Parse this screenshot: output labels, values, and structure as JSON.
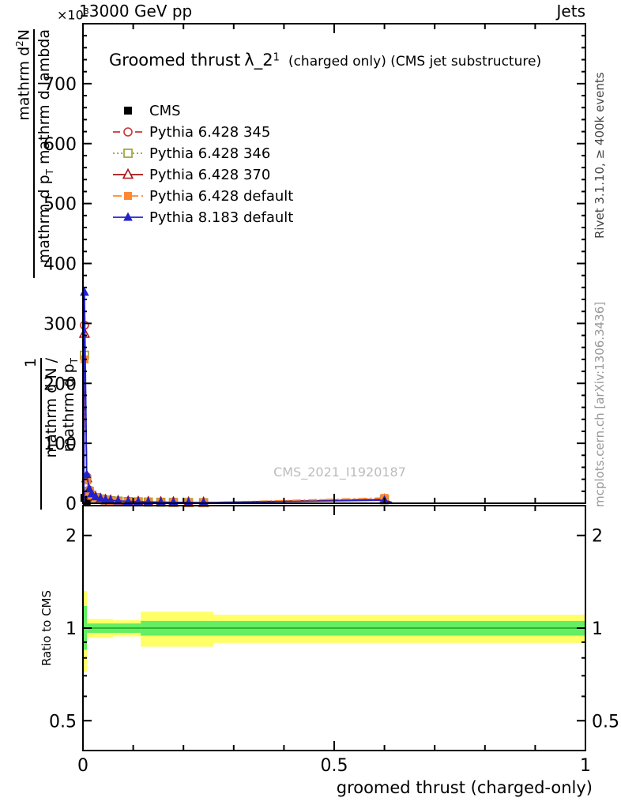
{
  "header": {
    "exponent_base": "×10",
    "exponent_sup": "3",
    "left_title": "13000 GeV pp",
    "right_title": "Jets"
  },
  "panel_title": {
    "main": "Groomed thrust",
    "lambda": "λ_2",
    "sup": "1",
    "paren": "(charged only) (CMS jet substructure)"
  },
  "watermark": "CMS_2021_I1920187",
  "y_axis_label": {
    "num_a": "mathrm d",
    "num_sup": "2",
    "num_b": "N",
    "den_a": "mathrm d p",
    "den_sub": "T",
    "den_b": " mathrm d lambda",
    "pre_num": "1",
    "pre_den_a": "mathrm d N / mathrm d p",
    "pre_den_sub": "T"
  },
  "right_margin": {
    "top_label": "Rivet 3.1.10, ≥ 400k events",
    "bottom_label": "mcplots.cern.ch [arXiv:1306.3436]"
  },
  "ratio_axis_label": "Ratio to CMS",
  "x_axis_label": "groomed thrust (charged-only)",
  "chart_data": {
    "type": "line",
    "title": "Groomed thrust λ_2^1 (charged only) (CMS jet substructure)",
    "xlabel": "groomed thrust (charged-only)",
    "ylabel": "1/mathrm dN/mathrm dp_T mathrm d^2N/(mathrm dp_T mathrm dlambda)",
    "y_exponent": "×10^3",
    "xlim": [
      0,
      1
    ],
    "main_panel": {
      "ylim": [
        0,
        800
      ],
      "yticks": [
        0,
        100,
        200,
        300,
        400,
        500,
        600,
        700
      ],
      "y_minor_step": 20,
      "x_major_ticks": [
        0,
        0.5,
        1
      ]
    },
    "series": [
      {
        "name": "CMS",
        "color": "#000000",
        "marker": "filled-square",
        "linestyle": "none",
        "points": [
          [
            0.003,
            9
          ],
          [
            0.0075,
            4
          ],
          [
            0.6,
            5
          ]
        ]
      },
      {
        "name": "Pythia 6.428 345",
        "color": "#cc3333",
        "marker": "open-circle",
        "linestyle": "dashed",
        "points": [
          [
            0.0015,
            2
          ],
          [
            0.003,
            297
          ],
          [
            0.0075,
            44
          ],
          [
            0.0125,
            22
          ],
          [
            0.0175,
            15
          ],
          [
            0.025,
            10
          ],
          [
            0.035,
            7.5
          ],
          [
            0.045,
            5.6
          ],
          [
            0.055,
            4.7
          ],
          [
            0.07,
            3.8
          ],
          [
            0.09,
            3.0
          ],
          [
            0.11,
            2.5
          ],
          [
            0.13,
            2.1
          ],
          [
            0.155,
            1.8
          ],
          [
            0.18,
            1.5
          ],
          [
            0.21,
            1.25
          ],
          [
            0.24,
            1.0
          ],
          [
            0.6,
            7
          ],
          [
            0.615,
            1
          ]
        ]
      },
      {
        "name": "Pythia 6.428 346",
        "color": "#999933",
        "marker": "open-square",
        "linestyle": "dotted",
        "points": [
          [
            0.0015,
            2
          ],
          [
            0.003,
            247
          ],
          [
            0.0075,
            40
          ],
          [
            0.0125,
            20
          ],
          [
            0.0175,
            13.5
          ],
          [
            0.025,
            9.4
          ],
          [
            0.035,
            7.0
          ],
          [
            0.045,
            5.2
          ],
          [
            0.055,
            4.3
          ],
          [
            0.07,
            3.5
          ],
          [
            0.09,
            2.8
          ],
          [
            0.11,
            2.3
          ],
          [
            0.13,
            1.95
          ],
          [
            0.155,
            1.65
          ],
          [
            0.18,
            1.4
          ],
          [
            0.21,
            1.15
          ],
          [
            0.24,
            0.95
          ],
          [
            0.6,
            6
          ],
          [
            0.615,
            1
          ]
        ]
      },
      {
        "name": "Pythia 6.428 370",
        "color": "#aa1111",
        "marker": "open-triangle",
        "linestyle": "solid",
        "points": [
          [
            0.0015,
            2
          ],
          [
            0.003,
            283
          ],
          [
            0.0075,
            42
          ],
          [
            0.0125,
            21
          ],
          [
            0.0175,
            14
          ],
          [
            0.025,
            9.8
          ],
          [
            0.035,
            7.2
          ],
          [
            0.045,
            5.4
          ],
          [
            0.055,
            4.5
          ],
          [
            0.07,
            3.6
          ],
          [
            0.09,
            2.9
          ],
          [
            0.11,
            2.4
          ],
          [
            0.13,
            2.0
          ],
          [
            0.155,
            1.7
          ],
          [
            0.18,
            1.45
          ],
          [
            0.21,
            1.2
          ],
          [
            0.24,
            1.0
          ],
          [
            0.6,
            6
          ],
          [
            0.615,
            1
          ]
        ]
      },
      {
        "name": "Pythia 6.428 default",
        "color": "#ff8833",
        "marker": "filled-square",
        "linestyle": "dash-dot",
        "points": [
          [
            0.0015,
            2
          ],
          [
            0.003,
            240
          ],
          [
            0.0075,
            38
          ],
          [
            0.0125,
            19
          ],
          [
            0.0175,
            13
          ],
          [
            0.025,
            9
          ],
          [
            0.035,
            6.8
          ],
          [
            0.045,
            5.0
          ],
          [
            0.055,
            4.2
          ],
          [
            0.07,
            3.4
          ],
          [
            0.09,
            2.7
          ],
          [
            0.11,
            2.25
          ],
          [
            0.13,
            1.9
          ],
          [
            0.155,
            1.6
          ],
          [
            0.18,
            1.35
          ],
          [
            0.21,
            1.1
          ],
          [
            0.24,
            0.9
          ],
          [
            0.6,
            9
          ],
          [
            0.615,
            1
          ]
        ]
      },
      {
        "name": "Pythia 8.183 default",
        "color": "#2222cc",
        "marker": "filled-triangle",
        "linestyle": "solid",
        "points": [
          [
            0.0015,
            2
          ],
          [
            0.003,
            352
          ],
          [
            0.0075,
            48
          ],
          [
            0.0125,
            24
          ],
          [
            0.0175,
            16
          ],
          [
            0.025,
            11
          ],
          [
            0.035,
            8
          ],
          [
            0.045,
            6
          ],
          [
            0.055,
            5
          ],
          [
            0.07,
            4
          ],
          [
            0.09,
            3.2
          ],
          [
            0.11,
            2.6
          ],
          [
            0.13,
            2.2
          ],
          [
            0.155,
            1.9
          ],
          [
            0.18,
            1.6
          ],
          [
            0.21,
            1.3
          ],
          [
            0.24,
            1.1
          ],
          [
            0.6,
            5
          ],
          [
            0.615,
            1
          ]
        ]
      }
    ],
    "ratio_panel": {
      "label": "Ratio to CMS",
      "yscale": "log",
      "ylim": [
        0.4,
        2.5
      ],
      "yticks": [
        0.5,
        1,
        2
      ],
      "y_minor_ticks": [
        0.6,
        0.7,
        0.8,
        0.9
      ],
      "band_colors": {
        "yellow": "#ffff66",
        "green": "#63ee63"
      },
      "centerline": {
        "value": 1,
        "color": "#2db82d"
      },
      "bands": {
        "yellow": [
          {
            "x0": 0.0,
            "x1": 0.008,
            "lo": 0.72,
            "hi": 1.32
          },
          {
            "x0": 0.008,
            "x1": 0.06,
            "lo": 0.93,
            "hi": 1.07
          },
          {
            "x0": 0.06,
            "x1": 0.115,
            "lo": 0.94,
            "hi": 1.06
          },
          {
            "x0": 0.115,
            "x1": 0.26,
            "lo": 0.87,
            "hi": 1.13
          },
          {
            "x0": 0.26,
            "x1": 1.0,
            "lo": 0.895,
            "hi": 1.105
          }
        ],
        "green": [
          {
            "x0": 0.0,
            "x1": 0.008,
            "lo": 0.85,
            "hi": 1.18
          },
          {
            "x0": 0.008,
            "x1": 0.115,
            "lo": 0.965,
            "hi": 1.035
          },
          {
            "x0": 0.115,
            "x1": 1.0,
            "lo": 0.945,
            "hi": 1.055
          }
        ]
      }
    }
  }
}
